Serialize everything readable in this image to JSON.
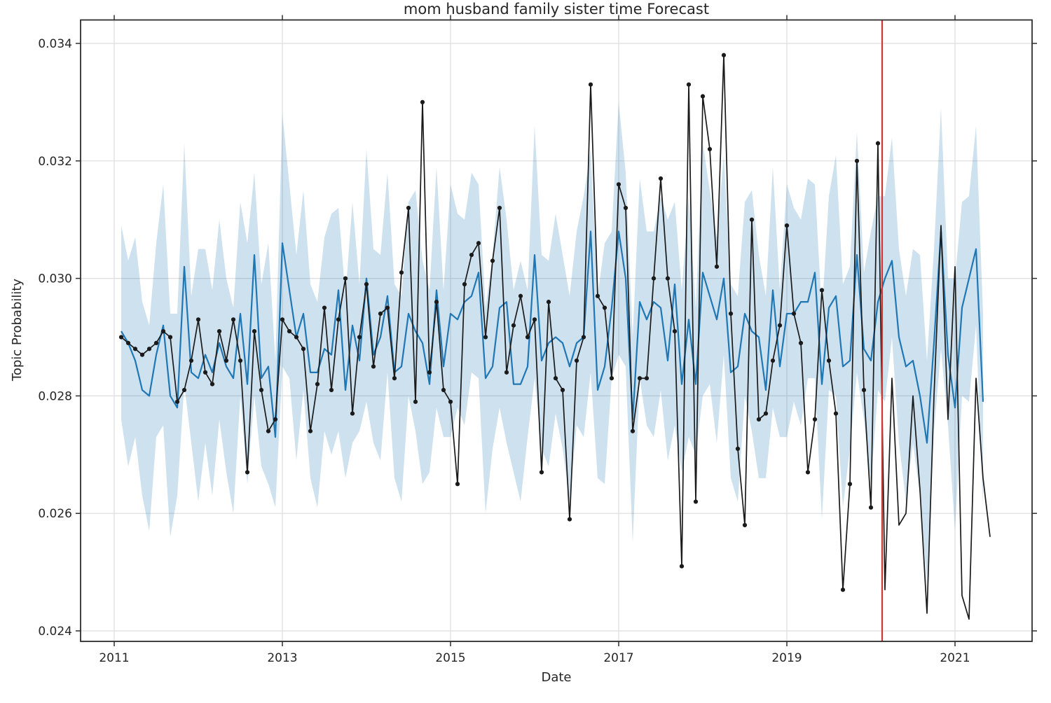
{
  "page": {
    "background": "#ffffff"
  },
  "chart": {
    "title": "mom husband family sister time Forecast",
    "x_label": "Date",
    "y_label": "Topic Probability",
    "colors": {
      "observed_line": "#1a1a1a",
      "forecast_line": "#1f77b4",
      "confidence_band": "rgba(31,119,180,0.22)",
      "split_line": "#d13636",
      "grid": "#dddddd",
      "spine": "#2e2e2e",
      "text": "#262626",
      "background": "#ffffff"
    }
  },
  "chart_data": {
    "type": "line",
    "title": "mom husband family sister time Forecast",
    "xlabel": "Date",
    "ylabel": "Topic Probability",
    "x_start": "2011-02",
    "x_end": "2021-06",
    "x_freq": "monthly",
    "n_points": 125,
    "x_tick_labels": [
      "2011",
      "2013",
      "2015",
      "2017",
      "2019",
      "2021"
    ],
    "y_tick_labels": [
      "0.024",
      "0.026",
      "0.028",
      "0.030",
      "0.032",
      "0.034"
    ],
    "y_ticks": [
      0.024,
      0.026,
      0.028,
      0.03,
      0.032,
      0.034
    ],
    "ylim": [
      0.0238,
      0.0344
    ],
    "grid": true,
    "legend": "none",
    "forecast_split_date": "2020-02",
    "split_month_index": 108.6,
    "marker_last_index": 108,
    "series": [
      {
        "name": "observed",
        "values": [
          0.029,
          0.0289,
          0.0288,
          0.0287,
          0.0288,
          0.0289,
          0.0291,
          0.029,
          0.0279,
          0.0281,
          0.0286,
          0.0293,
          0.0284,
          0.0282,
          0.0291,
          0.0286,
          0.0293,
          0.0286,
          0.0267,
          0.0291,
          0.0281,
          0.0274,
          0.0276,
          0.0293,
          0.0291,
          0.029,
          0.0288,
          0.0274,
          0.0282,
          0.0295,
          0.0281,
          0.0293,
          0.03,
          0.0277,
          0.029,
          0.0299,
          0.0285,
          0.0294,
          0.0295,
          0.0283,
          0.0301,
          0.0312,
          0.0279,
          0.033,
          0.0284,
          0.0296,
          0.0281,
          0.0279,
          0.0265,
          0.0299,
          0.0304,
          0.0306,
          0.029,
          0.0303,
          0.0312,
          0.0284,
          0.0292,
          0.0297,
          0.029,
          0.0293,
          0.0267,
          0.0296,
          0.0283,
          0.0281,
          0.0259,
          0.0286,
          0.029,
          0.0333,
          0.0297,
          0.0295,
          0.0283,
          0.0316,
          0.0312,
          0.0274,
          0.0283,
          0.0283,
          0.03,
          0.0317,
          0.03,
          0.0291,
          0.0251,
          0.0333,
          0.0262,
          0.0331,
          0.0322,
          0.0302,
          0.0338,
          0.0294,
          0.0271,
          0.0258,
          0.031,
          0.0276,
          0.0277,
          0.0286,
          0.0292,
          0.0309,
          0.0294,
          0.0289,
          0.0267,
          0.0276,
          0.0298,
          0.0286,
          0.0277,
          0.0247,
          0.0265,
          0.032,
          0.0281,
          0.0261,
          0.0323,
          0.0247,
          0.0283,
          0.0258,
          0.026,
          0.028,
          0.0264,
          0.0243,
          0.028,
          0.0309,
          0.0276,
          0.0302,
          0.0246,
          0.0242,
          0.0283,
          0.0266,
          0.0256
        ]
      },
      {
        "name": "forecast",
        "values": [
          0.0291,
          0.0289,
          0.0286,
          0.0281,
          0.028,
          0.0287,
          0.0292,
          0.028,
          0.0278,
          0.0302,
          0.0284,
          0.0283,
          0.0287,
          0.0284,
          0.0289,
          0.0285,
          0.0283,
          0.0294,
          0.0282,
          0.0304,
          0.0283,
          0.0285,
          0.0273,
          0.0306,
          0.0298,
          0.029,
          0.0294,
          0.0284,
          0.0284,
          0.0288,
          0.0287,
          0.0298,
          0.0281,
          0.0292,
          0.0286,
          0.03,
          0.0287,
          0.029,
          0.0297,
          0.0284,
          0.0285,
          0.0294,
          0.0291,
          0.0289,
          0.0282,
          0.0298,
          0.0285,
          0.0294,
          0.0293,
          0.0296,
          0.0297,
          0.0301,
          0.0283,
          0.0285,
          0.0295,
          0.0296,
          0.0282,
          0.0282,
          0.0285,
          0.0304,
          0.0286,
          0.0289,
          0.029,
          0.0289,
          0.0285,
          0.0289,
          0.029,
          0.0308,
          0.0281,
          0.0285,
          0.0295,
          0.0308,
          0.03,
          0.0276,
          0.0296,
          0.0293,
          0.0296,
          0.0295,
          0.0286,
          0.0299,
          0.0282,
          0.0293,
          0.0282,
          0.0301,
          0.0297,
          0.0293,
          0.03,
          0.0284,
          0.0285,
          0.0294,
          0.0291,
          0.029,
          0.0281,
          0.0298,
          0.0285,
          0.0294,
          0.0294,
          0.0296,
          0.0296,
          0.0301,
          0.0282,
          0.0295,
          0.0297,
          0.0285,
          0.0286,
          0.0304,
          0.0288,
          0.0286,
          0.0296,
          0.03,
          0.0303,
          0.029,
          0.0285,
          0.0286,
          0.028,
          0.0272,
          0.0289,
          0.0308,
          0.0287,
          0.0278,
          0.0295,
          0.03,
          0.0305,
          0.0279,
          null
        ]
      }
    ],
    "band": {
      "name": "confidence-interval",
      "basis": "forecast",
      "last_index": 123,
      "upper_offsets_cycle": [
        0.0018,
        0.0014,
        0.0021,
        0.0015,
        0.0012,
        0.0019,
        0.0024,
        0.0014,
        0.0016,
        0.0021,
        0.0013,
        0.0022
      ],
      "lower_offsets_cycle": [
        0.0015,
        0.0021,
        0.0013,
        0.0018,
        0.0023,
        0.0014,
        0.0017,
        0.0024,
        0.0015,
        0.002,
        0.0012,
        0.0021
      ]
    }
  }
}
